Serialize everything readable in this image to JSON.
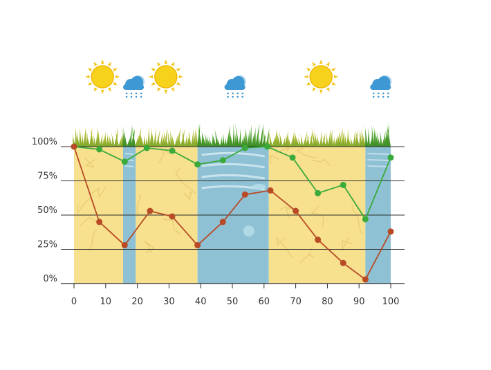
{
  "chart_data": {
    "type": "line",
    "xlim": [
      0,
      100
    ],
    "ylim": [
      0,
      100
    ],
    "x_ticks": [
      0,
      10,
      20,
      30,
      40,
      50,
      60,
      70,
      80,
      90,
      100
    ],
    "x_tick_labels": [
      "0",
      "10",
      "20",
      "30",
      "40",
      "50",
      "60",
      "70",
      "80",
      "90",
      "100"
    ],
    "y_ticks": [
      0,
      25,
      50,
      75,
      100
    ],
    "y_tick_labels": [
      "0%",
      "25%",
      "50%",
      "75%",
      "100%"
    ],
    "grid": "horizontal",
    "legend": "none",
    "background_bands": [
      {
        "kind": "dry",
        "x": [
          0,
          15.5
        ]
      },
      {
        "kind": "wet",
        "x": [
          15.5,
          19.5
        ]
      },
      {
        "kind": "dry",
        "x": [
          19.5,
          39
        ]
      },
      {
        "kind": "wet",
        "x": [
          39,
          61.5
        ]
      },
      {
        "kind": "dry",
        "x": [
          61.5,
          92
        ]
      },
      {
        "kind": "wet",
        "x": [
          92,
          100
        ]
      }
    ],
    "weather_icons": [
      {
        "icon": "sun-icon",
        "x": 9
      },
      {
        "icon": "rain-cloud-icon",
        "x": 19
      },
      {
        "icon": "sun-icon",
        "x": 29
      },
      {
        "icon": "rain-cloud-icon",
        "x": 51
      },
      {
        "icon": "sun-icon",
        "x": 78
      },
      {
        "icon": "rain-cloud-icon",
        "x": 97
      }
    ],
    "series": [
      {
        "color": "#3aaa3a",
        "x": [
          0,
          8,
          16,
          23,
          31,
          39,
          47,
          54,
          61,
          69,
          77,
          85,
          92,
          100
        ],
        "y": [
          100,
          98,
          89,
          99,
          97,
          87,
          90,
          99,
          100,
          92,
          66,
          72,
          47,
          92
        ]
      },
      {
        "color": "#b84a26",
        "x": [
          0,
          8,
          16,
          24,
          31,
          39,
          47,
          54,
          62,
          70,
          77,
          85,
          92,
          100
        ],
        "y": [
          100,
          45,
          28,
          53,
          49,
          28,
          45,
          65,
          68,
          53,
          32,
          15,
          3,
          38
        ]
      }
    ]
  }
}
